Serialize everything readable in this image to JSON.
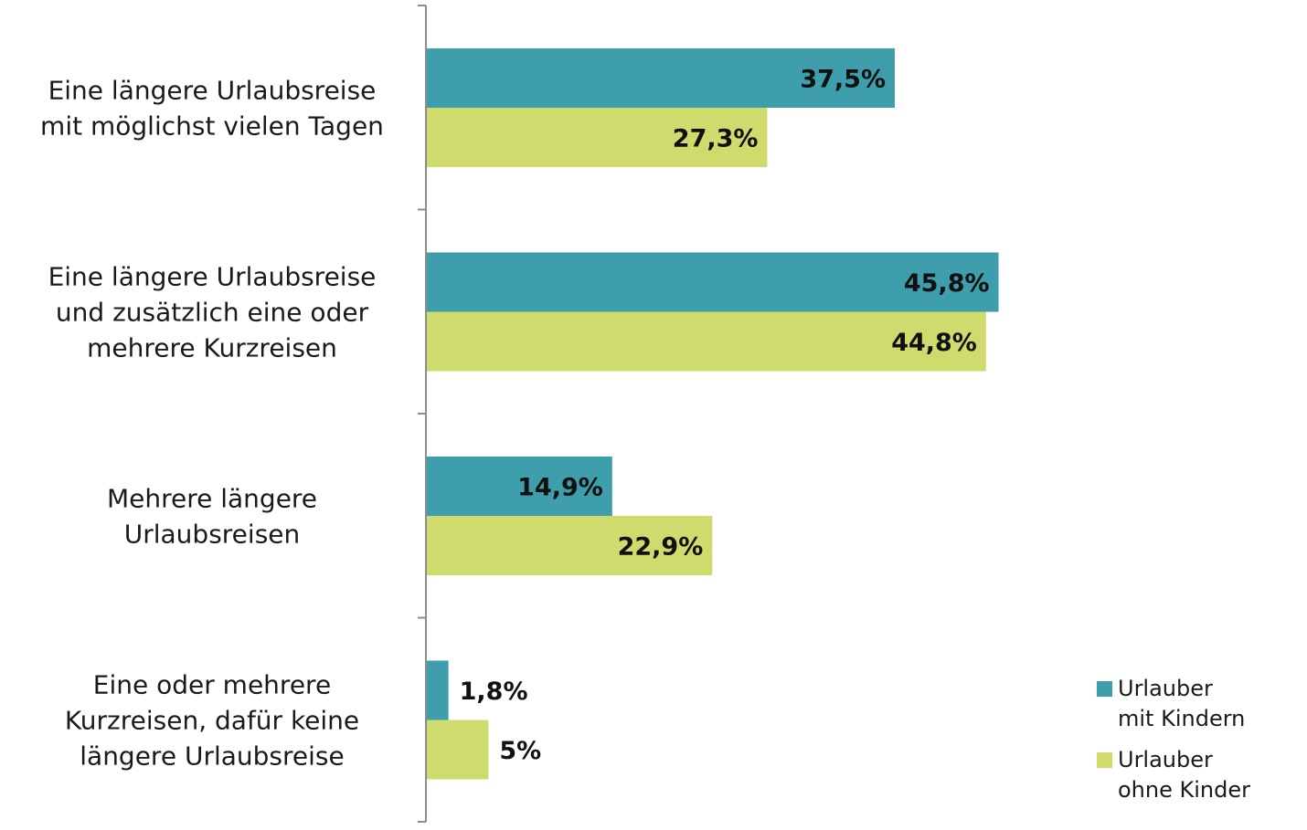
{
  "chart_data": {
    "type": "bar",
    "orientation": "horizontal",
    "categories": [
      [
        "Eine längere Urlaubsreise",
        "mit möglichst vielen Tagen"
      ],
      [
        "Eine längere Urlaubsreise",
        "und zusätzlich eine oder",
        "mehrere Kurzreisen"
      ],
      [
        "Mehrere längere",
        "Urlaubsreisen"
      ],
      [
        "Eine oder mehrere",
        "Kurzreisen, dafür keine",
        "längere Urlaubsreise"
      ]
    ],
    "series": [
      {
        "name_lines": [
          "Urlauber",
          "mit Kindern"
        ],
        "color": "#3e9eab",
        "values": [
          37.5,
          45.8,
          14.9,
          1.8
        ],
        "labels": [
          "37,5%",
          "45,8%",
          "14,9%",
          "1,8%"
        ]
      },
      {
        "name_lines": [
          "Urlauber",
          "ohne Kinder"
        ],
        "color": "#d0db6e",
        "values": [
          27.3,
          44.8,
          22.9,
          5
        ],
        "labels": [
          "27,3%",
          "44,8%",
          "22,9%",
          "5%"
        ]
      }
    ],
    "xlim": [
      0,
      50
    ],
    "grid": false,
    "legend": "bottom-right"
  }
}
